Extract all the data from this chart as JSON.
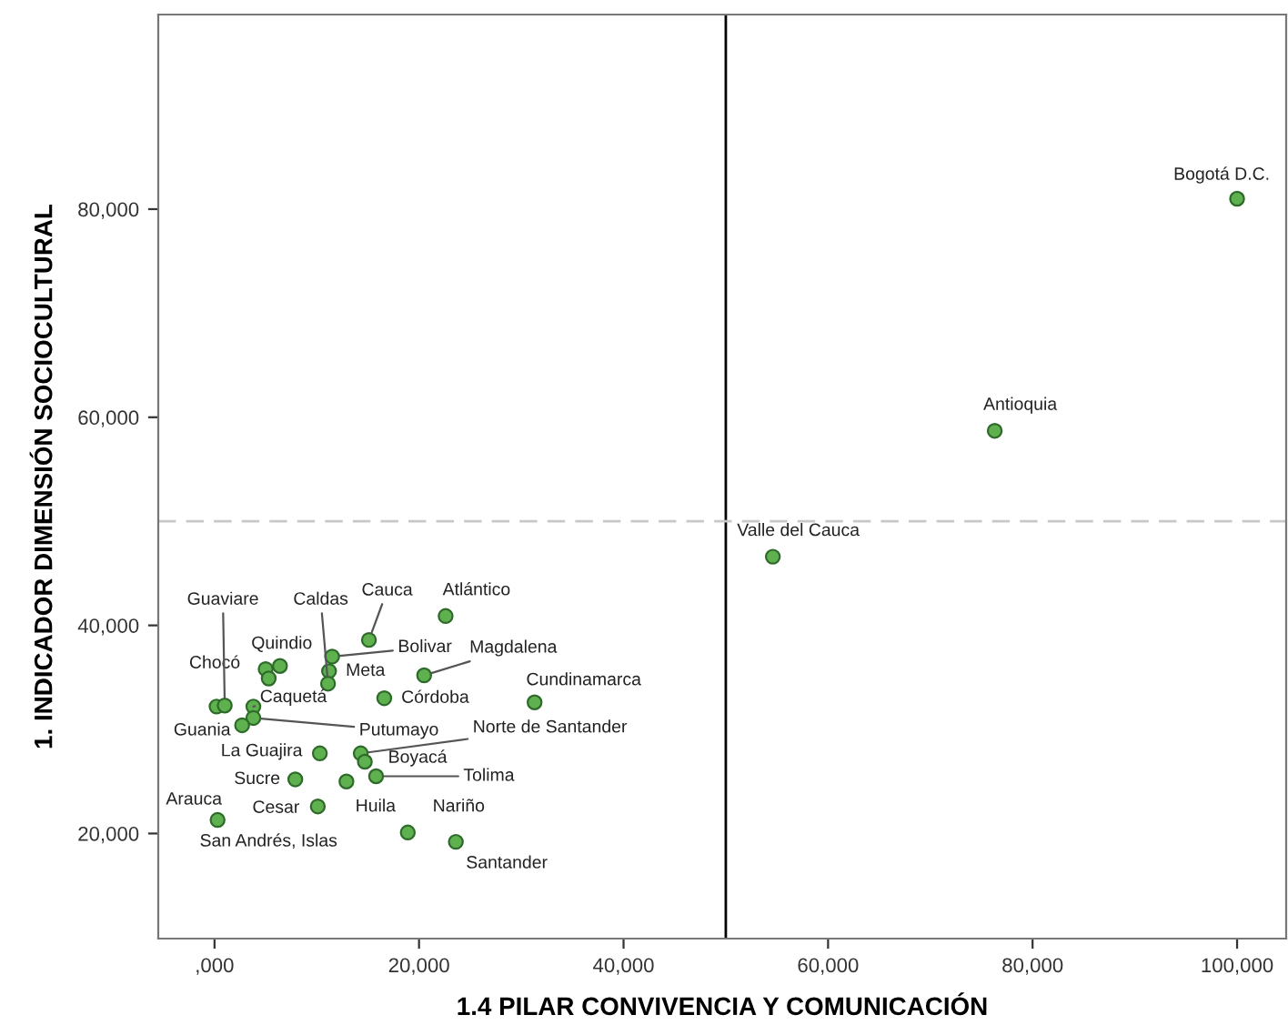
{
  "chart_data": {
    "type": "scatter",
    "xlabel": "1.4 PILAR CONVIVENCIA Y COMUNICACIÓN",
    "ylabel": "1. INDICADOR DIMENSIÓN SOCIOCULTURAL",
    "xlim": [
      -5500,
      104800
    ],
    "ylim": [
      9900,
      98700
    ],
    "xticks": [
      {
        "value": 0,
        "label": ",000"
      },
      {
        "value": 20000,
        "label": "20,000"
      },
      {
        "value": 40000,
        "label": "40,000"
      },
      {
        "value": 60000,
        "label": "60,000"
      },
      {
        "value": 80000,
        "label": "80,000"
      },
      {
        "value": 100000,
        "label": "100,000"
      }
    ],
    "yticks": [
      {
        "value": 20000,
        "label": "20,000"
      },
      {
        "value": 40000,
        "label": "40,000"
      },
      {
        "value": 60000,
        "label": "60,000"
      },
      {
        "value": 80000,
        "label": "80,000"
      }
    ],
    "grid": false,
    "marker": "circle",
    "series": [
      {
        "color": "#5fb04f",
        "x": [
          100000,
          76300,
          54600,
          22600,
          15100,
          20500,
          11500,
          11200,
          11100,
          16600,
          31300,
          6400,
          5000,
          5300,
          200,
          1000,
          3800,
          3800,
          2700,
          10300,
          14300,
          14700,
          15800,
          7900,
          12900,
          10100,
          300,
          18900,
          23600
        ],
        "values": [
          81000,
          58700,
          46600,
          40900,
          38600,
          35200,
          37000,
          35600,
          34400,
          33000,
          32600,
          36100,
          35800,
          34900,
          32200,
          32300,
          32200,
          31100,
          30400,
          27700,
          27700,
          26900,
          25500,
          25200,
          25000,
          22600,
          21300,
          20100,
          19200
        ]
      }
    ],
    "ref_lines": [
      {
        "axis": "x",
        "value": 50000,
        "color": "#000000",
        "line_style": "solid"
      },
      {
        "axis": "y",
        "value": 50000,
        "color": "#c8c8c8",
        "line_style": "dashed"
      }
    ],
    "annotations": [
      {
        "text": "Bogotá D.C.",
        "x": 100000,
        "y": 81000
      },
      {
        "text": "Antioquia",
        "x": 76300,
        "y": 58700
      },
      {
        "text": "Valle del Cauca",
        "x": 54600,
        "y": 46600
      },
      {
        "text": "Atlántico",
        "x": 22600,
        "y": 40900
      },
      {
        "text": "Cauca",
        "x": 15100,
        "y": 38600
      },
      {
        "text": "Magdalena",
        "x": 20500,
        "y": 35200
      },
      {
        "text": "Bolivar",
        "x": 11500,
        "y": 37000
      },
      {
        "text": "Meta",
        "x": 11200,
        "y": 35600
      },
      {
        "text": "Caldas",
        "x": 11100,
        "y": 34400
      },
      {
        "text": "Córdoba",
        "x": 16600,
        "y": 33000
      },
      {
        "text": "Cundinamarca",
        "x": 31300,
        "y": 32600
      },
      {
        "text": "Quindio",
        "x": 6400,
        "y": 36100
      },
      {
        "text": "Chocó",
        "x": 5000,
        "y": 35800
      },
      {
        "text": "Guaviare",
        "x": 1000,
        "y": 32300
      },
      {
        "text": "Caquetá",
        "x": 3800,
        "y": 32200
      },
      {
        "text": "Putumayo",
        "x": 3800,
        "y": 31100
      },
      {
        "text": "Guania",
        "x": 2700,
        "y": 30400
      },
      {
        "text": "La Guajira",
        "x": 10300,
        "y": 27700
      },
      {
        "text": "Norte de Santander",
        "x": 14300,
        "y": 27700
      },
      {
        "text": "Boyacá",
        "x": 14700,
        "y": 26900
      },
      {
        "text": "Tolima",
        "x": 15800,
        "y": 25500
      },
      {
        "text": "Sucre",
        "x": 7900,
        "y": 25200
      },
      {
        "text": "Huila",
        "x": 12900,
        "y": 25000
      },
      {
        "text": "Cesar",
        "x": 10100,
        "y": 22600
      },
      {
        "text": "Arauca",
        "x": 300,
        "y": 21300
      },
      {
        "text": "San Andrés, Islas",
        "x": 300,
        "y": 21300
      },
      {
        "text": "Nariño",
        "x": 18900,
        "y": 20100
      },
      {
        "text": "Santander",
        "x": 23600,
        "y": 19200
      }
    ]
  }
}
